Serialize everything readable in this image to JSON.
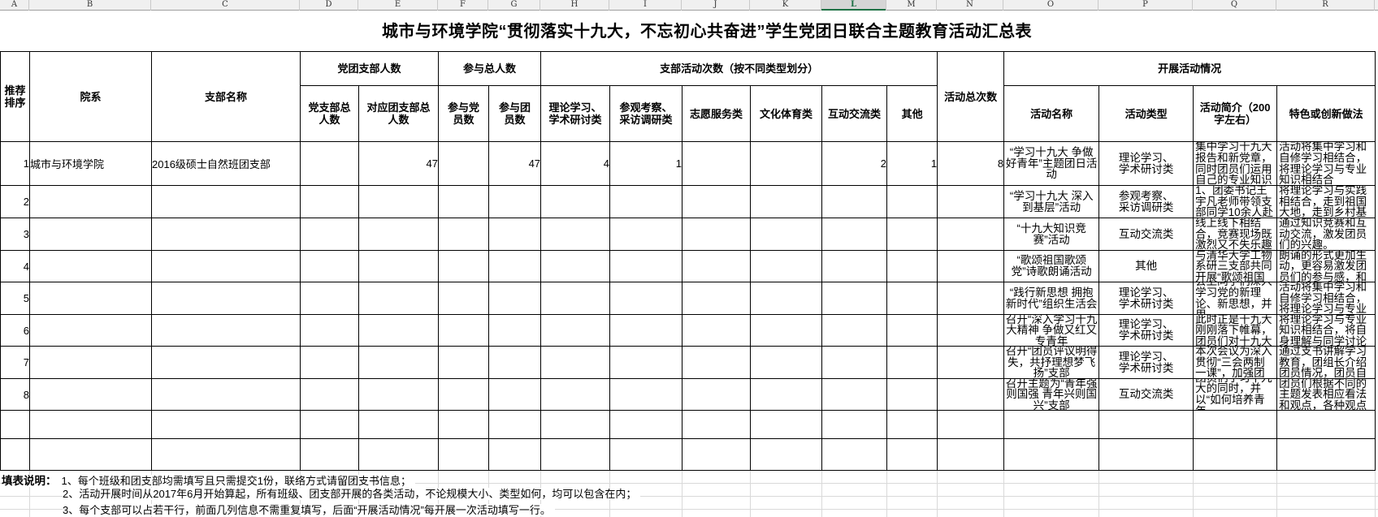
{
  "spreadsheet": {
    "column_letters": [
      "A",
      "B",
      "C",
      "D",
      "E",
      "F",
      "G",
      "H",
      "I",
      "J",
      "K",
      "L",
      "M",
      "N",
      "O",
      "P",
      "Q",
      "R"
    ],
    "selected_column": "L",
    "selection_color": "#1e7145",
    "title": "城市与环境学院“贯彻落实十九大，不忘初心共奋进”学生党团日联合主题教育活动汇总表",
    "header": {
      "seq": "推荐\n排序",
      "yuanxi": "院系",
      "zhibu": "支部名称",
      "group_renshu": "党团支部人数",
      "dang_total": "党支部总\n人数",
      "tuan_total": "对应团支部总\n人数",
      "group_canyu": "参与总人数",
      "canyu_dang": "参与党\n员数",
      "canyu_tuan": "参与团\n员数",
      "group_cishu": "支部活动次数（按不同类型划分）",
      "lilun": "理论学习、\n学术研讨类",
      "canguan": "参观考察、\n采访调研类",
      "zhiyuan": "志愿服务类",
      "wenhua": "文化体育类",
      "hudong": "互动交流类",
      "qita": "其他",
      "total": "活动总次数",
      "group_kaizhan": "开展活动情况",
      "name": "活动名称",
      "type": "活动类型",
      "intro": "活动简介（200\n字左右）",
      "tese": "特色或创新做法"
    },
    "rows": [
      {
        "seq": "1",
        "yuanxi": "城市与环境学院",
        "zhibu": "2016级硕士自然班团支部",
        "d": "",
        "e": "47",
        "f": "",
        "g": "47",
        "h": "4",
        "i": "1",
        "j": "",
        "k": "",
        "l": "2",
        "m": "1",
        "n": "8",
        "name": "“学习十九大 争做好青年”主题团日活动",
        "type": "理论学习、\n学术研讨类",
        "intro": "集中学习十九大报告和新党章，同时团员们运用自己的专业知识",
        "tese": "活动将集中学习和自修学习相结合，将理论学习与专业知识相结合"
      },
      {
        "seq": "2",
        "yuanxi": "",
        "zhibu": "",
        "d": "",
        "e": "",
        "f": "",
        "g": "",
        "h": "",
        "i": "",
        "j": "",
        "k": "",
        "l": "",
        "m": "",
        "n": "",
        "name": "“学习十九大 深入到基层”活动",
        "type": "参观考察、\n采访调研类",
        "intro": "1、团委书记王宇凡老师带领支部同学10余人赴",
        "tese": "将理论学习与实践相结合，走到祖国大地，走到乡村基"
      },
      {
        "seq": "3",
        "yuanxi": "",
        "zhibu": "",
        "d": "",
        "e": "",
        "f": "",
        "g": "",
        "h": "",
        "i": "",
        "j": "",
        "k": "",
        "l": "",
        "m": "",
        "n": "",
        "name": "“十九大知识竞赛”活动",
        "type": "互动交流类",
        "intro": "线上线下相结合，竞赛现场既激烈又不失乐趣",
        "tese": "通过知识竞赛和互动交流，激发团员们的兴趣。"
      },
      {
        "seq": "4",
        "yuanxi": "",
        "zhibu": "",
        "d": "",
        "e": "",
        "f": "",
        "g": "",
        "h": "",
        "i": "",
        "j": "",
        "k": "",
        "l": "",
        "m": "",
        "n": "",
        "name": "“歌颂祖国歌颂党”诗歌朗诵活动",
        "type": "其他",
        "intro": "与清华大学工物系研三支部共同开展“歌颂祖国",
        "tese": "朗诵的形式更加生动，更容易激发团员们的参与感，和"
      },
      {
        "seq": "5",
        "yuanxi": "",
        "zhibu": "",
        "d": "",
        "e": "",
        "f": "",
        "g": "",
        "h": "",
        "i": "",
        "j": "",
        "k": "",
        "l": "",
        "m": "",
        "n": "",
        "name": "“践行新思想 拥抱新时代”组织生活会",
        "type": "理论学习、\n学术研讨类",
        "intro": "会上同学们深入学习党的新理论、新思想，并用",
        "tese": "活动将集中学习和自修学习相结合，将理论学习与专业"
      },
      {
        "seq": "6",
        "yuanxi": "",
        "zhibu": "",
        "d": "",
        "e": "",
        "f": "",
        "g": "",
        "h": "",
        "i": "",
        "j": "",
        "k": "",
        "l": "",
        "m": "",
        "n": "",
        "name": "召开“深入学习十九大精神 争做又红又专青年",
        "type": "理论学习、\n学术研讨类",
        "intro": "此时正是十九大刚刚落下帷幕，团员们对十九大",
        "tese": "将理论学习与专业知识相结合，将自身理解与同学讨论"
      },
      {
        "seq": "7",
        "yuanxi": "",
        "zhibu": "",
        "d": "",
        "e": "",
        "f": "",
        "g": "",
        "h": "",
        "i": "",
        "j": "",
        "k": "",
        "l": "",
        "m": "",
        "n": "",
        "name": "召开“团员评议明得失，共抒理想梦飞扬”支部",
        "type": "理论学习、\n学术研讨类",
        "intro": "本次会议为深入贯彻“三会两制一课”，加强团",
        "tese": "通过支书讲解学习教育，团组长介绍团员情况，团员自"
      },
      {
        "seq": "8",
        "yuanxi": "",
        "zhibu": "",
        "d": "",
        "e": "",
        "f": "",
        "g": "",
        "h": "",
        "i": "",
        "j": "",
        "k": "",
        "l": "",
        "m": "",
        "n": "",
        "name": "召开主题为“青年强则国强 青年兴则国兴”支部",
        "type": "互动交流类",
        "intro": "团员们学习十九大的同时，并以“如何培养青年",
        "tese": "团员们根据不同的主题发表相应看法和观点，各种观点"
      }
    ],
    "notes": {
      "label": "填表说明：",
      "lines": [
        "1、每个班级和团支部均需填写且只需提交1份，联络方式请留团支书信息；",
        "2、活动开展时间从2017年6月开始算起，所有班级、团支部开展的各类活动，不论规模大小、类型如何，均可以包含在内；",
        "3、每个支部可以占若干行，前面几列信息不需重复填写，后面“开展活动情况”每开展一次活动填写一行。"
      ]
    }
  }
}
